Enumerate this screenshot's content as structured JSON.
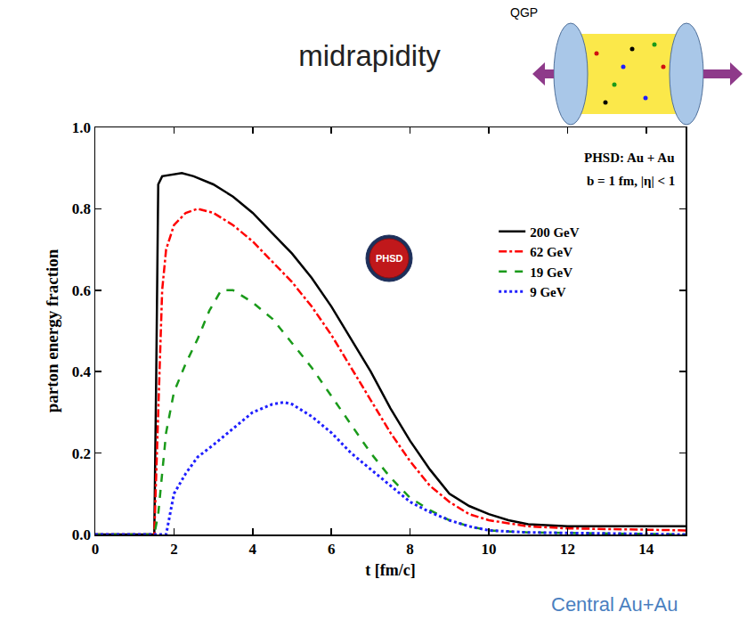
{
  "chart_data": {
    "type": "line",
    "title": "midrapidity",
    "x_label": "t [fm/c]",
    "y_label": "parton energy fraction",
    "annotations": [
      "PHSD: Au + Au",
      "b = 1 fm, |η| < 1",
      "PHSD",
      "QGP",
      "Central Au+Au"
    ],
    "xlim": [
      0,
      15
    ],
    "xticks": [
      0,
      2,
      4,
      6,
      8,
      10,
      12,
      14
    ],
    "ylim": [
      0,
      1
    ],
    "yticks": [
      {
        "value": 0,
        "label": "0.0"
      },
      {
        "value": 0.2,
        "label": "0.2"
      },
      {
        "value": 0.4,
        "label": "0.4"
      },
      {
        "value": 0.6,
        "label": "0.6"
      },
      {
        "value": 0.8,
        "label": "0.8"
      },
      {
        "value": 1,
        "label": "1.0"
      }
    ],
    "grid": false,
    "legend": "upper right",
    "series": [
      {
        "name": "200 GeV",
        "color": "#000000",
        "line_style": "solid",
        "x": [
          0,
          1.5,
          1.55,
          1.6,
          1.7,
          2.0,
          2.2,
          2.5,
          3,
          3.5,
          4,
          4.5,
          5,
          5.5,
          6,
          6.5,
          7,
          7.5,
          8,
          8.5,
          9,
          9.5,
          10,
          10.5,
          11,
          12,
          13,
          14,
          15
        ],
        "values": [
          0,
          0,
          0.4,
          0.86,
          0.88,
          0.885,
          0.888,
          0.88,
          0.86,
          0.83,
          0.79,
          0.74,
          0.69,
          0.63,
          0.56,
          0.48,
          0.4,
          0.31,
          0.23,
          0.16,
          0.1,
          0.07,
          0.05,
          0.035,
          0.025,
          0.02,
          0.02,
          0.02,
          0.02
        ]
      },
      {
        "name": "62 GeV",
        "color": "#ff0000",
        "line_style": "dashdot",
        "x": [
          0,
          1.5,
          1.6,
          1.7,
          1.8,
          2.0,
          2.3,
          2.6,
          3,
          3.5,
          4,
          4.5,
          5,
          5.5,
          6,
          6.5,
          7,
          7.5,
          8,
          8.5,
          9,
          9.5,
          10,
          11,
          12,
          15
        ],
        "values": [
          0,
          0,
          0.3,
          0.6,
          0.7,
          0.76,
          0.79,
          0.8,
          0.79,
          0.76,
          0.72,
          0.67,
          0.62,
          0.56,
          0.49,
          0.41,
          0.33,
          0.25,
          0.18,
          0.12,
          0.08,
          0.05,
          0.035,
          0.02,
          0.015,
          0.01
        ]
      },
      {
        "name": "19 GeV",
        "color": "#1a9a1a",
        "line_style": "dash",
        "x": [
          0,
          1.5,
          1.6,
          1.8,
          2.0,
          2.3,
          2.6,
          2.9,
          3.2,
          3.5,
          4,
          4.5,
          5,
          5.5,
          6,
          6.5,
          7,
          7.5,
          8,
          8.5,
          9,
          9.5,
          10,
          11,
          15
        ],
        "values": [
          0,
          0,
          0.05,
          0.25,
          0.35,
          0.42,
          0.48,
          0.55,
          0.6,
          0.6,
          0.57,
          0.53,
          0.47,
          0.41,
          0.34,
          0.27,
          0.2,
          0.14,
          0.09,
          0.06,
          0.035,
          0.02,
          0.01,
          0.005,
          0
        ]
      },
      {
        "name": "9 GeV",
        "color": "#1f1fff",
        "line_style": "dot",
        "x": [
          0,
          1.8,
          1.9,
          2.0,
          2.3,
          2.6,
          3,
          3.5,
          4,
          4.5,
          4.8,
          5,
          5.5,
          6,
          6.5,
          7,
          7.5,
          8,
          8.5,
          9,
          9.5,
          10,
          11,
          15
        ],
        "values": [
          0,
          0,
          0.05,
          0.1,
          0.15,
          0.19,
          0.22,
          0.26,
          0.3,
          0.32,
          0.325,
          0.32,
          0.29,
          0.25,
          0.2,
          0.16,
          0.12,
          0.08,
          0.055,
          0.035,
          0.02,
          0.01,
          0.005,
          0
        ]
      }
    ]
  }
}
